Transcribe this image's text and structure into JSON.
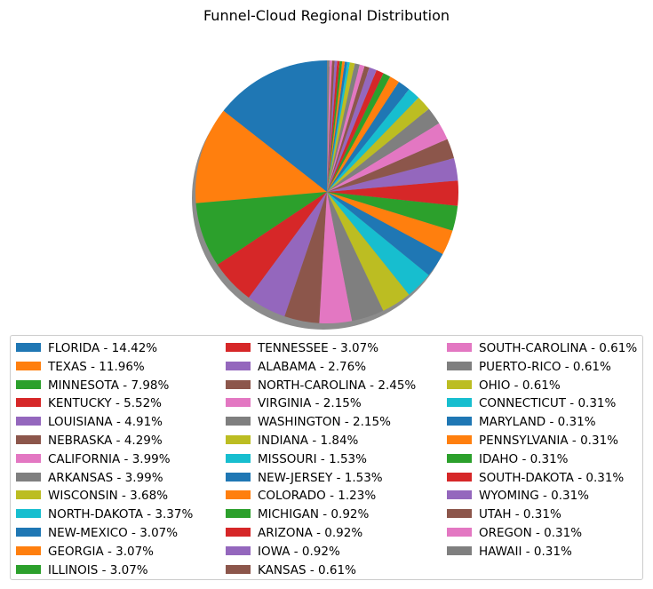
{
  "chart_data": {
    "type": "pie",
    "title": "Funnel-Cloud Regional Distribution",
    "shadow": true,
    "start_angle_deg": 90,
    "direction": "counterclockwise",
    "legend_placement": "bottom",
    "legend_columns": 3,
    "slices": [
      {
        "label": "FLORIDA - 14.42%",
        "value": 14.42,
        "color": "#1f77b4"
      },
      {
        "label": "TEXAS - 11.96%",
        "value": 11.96,
        "color": "#ff7f0e"
      },
      {
        "label": "MINNESOTA - 7.98%",
        "value": 7.98,
        "color": "#2ca02c"
      },
      {
        "label": "KENTUCKY - 5.52%",
        "value": 5.52,
        "color": "#d62728"
      },
      {
        "label": "LOUISIANA - 4.91%",
        "value": 4.91,
        "color": "#9467bd"
      },
      {
        "label": "NEBRASKA - 4.29%",
        "value": 4.29,
        "color": "#8c564b"
      },
      {
        "label": "CALIFORNIA - 3.99%",
        "value": 3.99,
        "color": "#e377c2"
      },
      {
        "label": "ARKANSAS - 3.99%",
        "value": 3.99,
        "color": "#7f7f7f"
      },
      {
        "label": "WISCONSIN - 3.68%",
        "value": 3.68,
        "color": "#bcbd22"
      },
      {
        "label": "NORTH-DAKOTA - 3.37%",
        "value": 3.37,
        "color": "#17becf"
      },
      {
        "label": "NEW-MEXICO - 3.07%",
        "value": 3.07,
        "color": "#1f77b4"
      },
      {
        "label": "GEORGIA - 3.07%",
        "value": 3.07,
        "color": "#ff7f0e"
      },
      {
        "label": "ILLINOIS - 3.07%",
        "value": 3.07,
        "color": "#2ca02c"
      },
      {
        "label": "TENNESSEE - 3.07%",
        "value": 3.07,
        "color": "#d62728"
      },
      {
        "label": "ALABAMA - 2.76%",
        "value": 2.76,
        "color": "#9467bd"
      },
      {
        "label": "NORTH-CAROLINA - 2.45%",
        "value": 2.45,
        "color": "#8c564b"
      },
      {
        "label": "VIRGINIA - 2.15%",
        "value": 2.15,
        "color": "#e377c2"
      },
      {
        "label": "WASHINGTON - 2.15%",
        "value": 2.15,
        "color": "#7f7f7f"
      },
      {
        "label": "INDIANA - 1.84%",
        "value": 1.84,
        "color": "#bcbd22"
      },
      {
        "label": "MISSOURI - 1.53%",
        "value": 1.53,
        "color": "#17becf"
      },
      {
        "label": "NEW-JERSEY - 1.53%",
        "value": 1.53,
        "color": "#1f77b4"
      },
      {
        "label": "COLORADO - 1.23%",
        "value": 1.23,
        "color": "#ff7f0e"
      },
      {
        "label": "MICHIGAN - 0.92%",
        "value": 0.92,
        "color": "#2ca02c"
      },
      {
        "label": "ARIZONA - 0.92%",
        "value": 0.92,
        "color": "#d62728"
      },
      {
        "label": "IOWA - 0.92%",
        "value": 0.92,
        "color": "#9467bd"
      },
      {
        "label": "KANSAS - 0.61%",
        "value": 0.61,
        "color": "#8c564b"
      },
      {
        "label": "SOUTH-CAROLINA - 0.61%",
        "value": 0.61,
        "color": "#e377c2"
      },
      {
        "label": "PUERTO-RICO - 0.61%",
        "value": 0.61,
        "color": "#7f7f7f"
      },
      {
        "label": "OHIO - 0.61%",
        "value": 0.61,
        "color": "#bcbd22"
      },
      {
        "label": "CONNECTICUT - 0.31%",
        "value": 0.31,
        "color": "#17becf"
      },
      {
        "label": "MARYLAND - 0.31%",
        "value": 0.31,
        "color": "#1f77b4"
      },
      {
        "label": "PENNSYLVANIA - 0.31%",
        "value": 0.31,
        "color": "#ff7f0e"
      },
      {
        "label": "IDAHO - 0.31%",
        "value": 0.31,
        "color": "#2ca02c"
      },
      {
        "label": "SOUTH-DAKOTA - 0.31%",
        "value": 0.31,
        "color": "#d62728"
      },
      {
        "label": "WYOMING - 0.31%",
        "value": 0.31,
        "color": "#9467bd"
      },
      {
        "label": "UTAH - 0.31%",
        "value": 0.31,
        "color": "#8c564b"
      },
      {
        "label": "OREGON - 0.31%",
        "value": 0.31,
        "color": "#e377c2"
      },
      {
        "label": "HAWAII - 0.31%",
        "value": 0.31,
        "color": "#7f7f7f"
      }
    ]
  }
}
